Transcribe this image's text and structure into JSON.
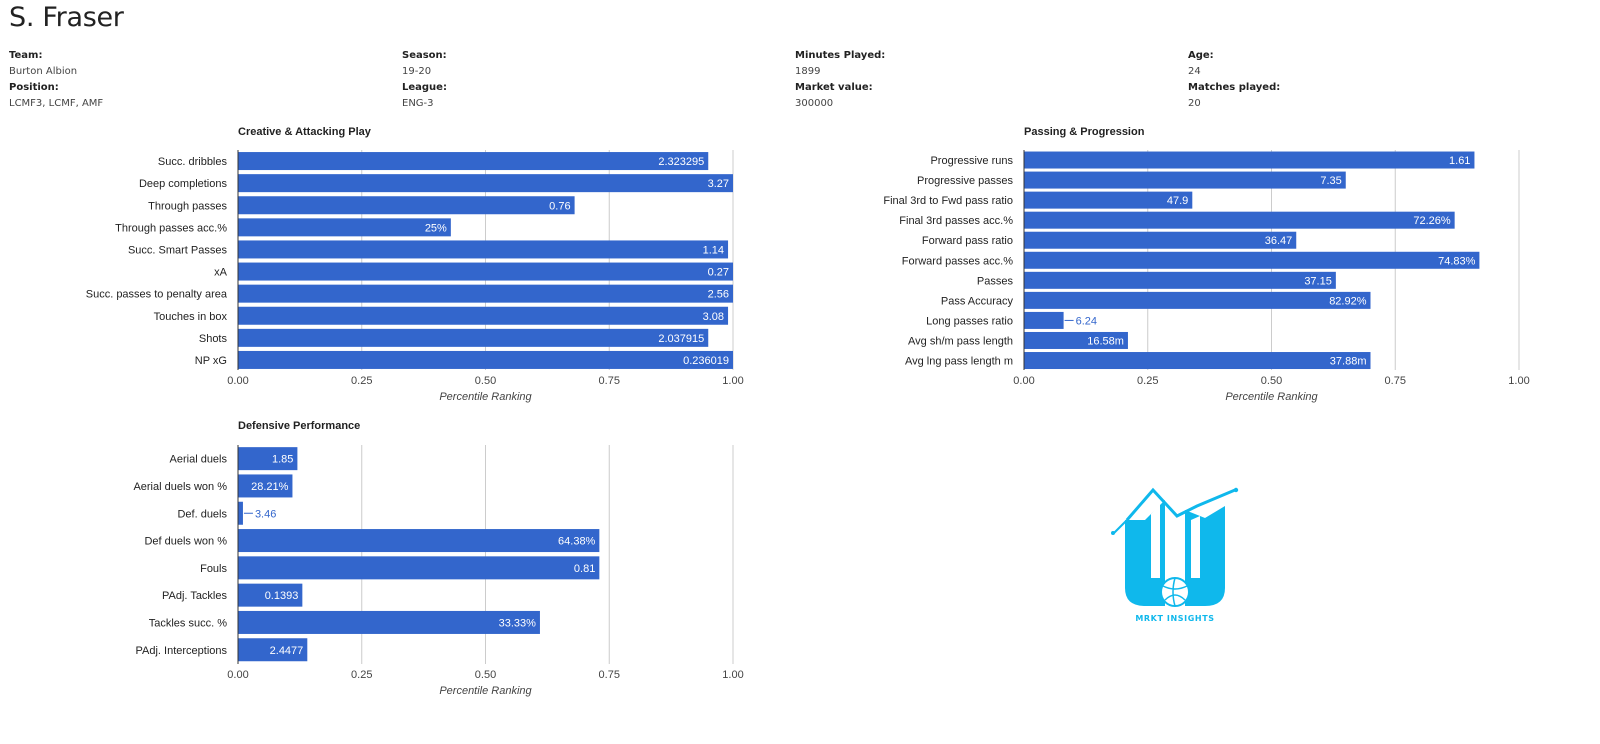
{
  "player": {
    "name": "S. Fraser"
  },
  "info": {
    "team_label": "Team:",
    "team": "Burton Albion",
    "position_label": "Position:",
    "position": "LCMF3, LCMF, AMF",
    "season_label": "Season:",
    "season": "19-20",
    "league_label": "League:",
    "league": "ENG-3",
    "minutes_label": "Minutes Played:",
    "minutes": "1899",
    "market_label": "Market value:",
    "market": "300000",
    "age_label": "Age:",
    "age": "24",
    "matches_label": "Matches played:",
    "matches": "20"
  },
  "logo": {
    "text": "MRKT INSIGHTS",
    "icon": "mrkt-insights-logo-icon",
    "color": "#0fb8ec"
  },
  "chart_data": [
    {
      "id": "creative",
      "type": "bar",
      "orientation": "horizontal",
      "title": "Creative & Attacking Play",
      "xlabel": "Percentile Ranking",
      "xlim": [
        0,
        1
      ],
      "ticks": [
        "0.00",
        "0.25",
        "0.50",
        "0.75",
        "1.00"
      ],
      "bar_color": "#3366cc",
      "categories": [
        "Succ. dribbles",
        "Deep completions",
        "Through passes",
        "Through passes acc.%",
        "Succ. Smart Passes",
        "xA",
        "Succ. passes to penalty area",
        "Touches in box",
        "Shots",
        "NP xG"
      ],
      "values": [
        0.95,
        1.0,
        0.68,
        0.43,
        0.99,
        1.0,
        1.0,
        0.99,
        0.95,
        1.0
      ],
      "labels": [
        "2.323295",
        "3.27",
        "0.76",
        "25%",
        "1.14",
        "0.27",
        "2.56",
        "3.08",
        "2.037915",
        "0.236019"
      ]
    },
    {
      "id": "passing",
      "type": "bar",
      "orientation": "horizontal",
      "title": "Passing & Progression",
      "xlabel": "Percentile Ranking",
      "xlim": [
        0,
        1
      ],
      "ticks": [
        "0.00",
        "0.25",
        "0.50",
        "0.75",
        "1.00"
      ],
      "bar_color": "#3366cc",
      "categories": [
        "Progressive runs",
        "Progressive passes",
        "Final 3rd to Fwd pass ratio",
        "Final 3rd passes acc.%",
        "Forward pass ratio",
        "Forward passes acc.%",
        "Passes",
        "Pass Accuracy",
        "Long passes ratio",
        "Avg sh/m pass length",
        "Avg lng pass length m"
      ],
      "values": [
        0.91,
        0.65,
        0.34,
        0.87,
        0.55,
        0.92,
        0.63,
        0.7,
        0.08,
        0.21,
        0.7
      ],
      "labels": [
        "1.61",
        "7.35",
        "47.9",
        "72.26%",
        "36.47",
        "74.83%",
        "37.15",
        "82.92%",
        "6.24",
        "16.58m",
        "37.88m"
      ]
    },
    {
      "id": "defensive",
      "type": "bar",
      "orientation": "horizontal",
      "title": "Defensive Performance",
      "xlabel": "Percentile Ranking",
      "xlim": [
        0,
        1
      ],
      "ticks": [
        "0.00",
        "0.25",
        "0.50",
        "0.75",
        "1.00"
      ],
      "bar_color": "#3366cc",
      "categories": [
        "Aerial duels",
        "Aerial duels won %",
        "Def. duels",
        "Def duels won %",
        "Fouls",
        "PAdj. Tackles",
        "Tackles succ. %",
        "PAdj. Interceptions"
      ],
      "values": [
        0.12,
        0.11,
        0.01,
        0.73,
        0.73,
        0.13,
        0.61,
        0.14
      ],
      "labels": [
        "1.85",
        "28.21%",
        "3.46",
        "64.38%",
        "0.81",
        "0.1393",
        "33.33%",
        "2.4477"
      ]
    }
  ]
}
